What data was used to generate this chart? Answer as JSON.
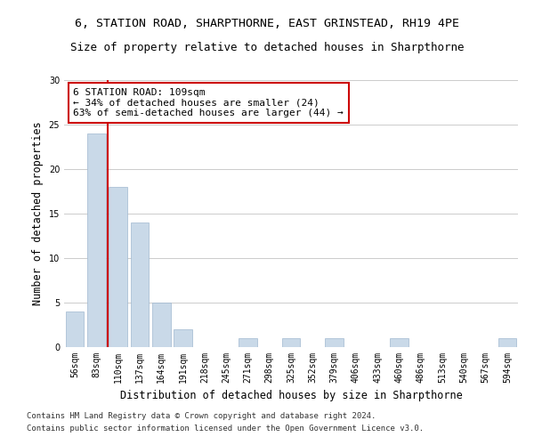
{
  "title_line1": "6, STATION ROAD, SHARPTHORNE, EAST GRINSTEAD, RH19 4PE",
  "title_line2": "Size of property relative to detached houses in Sharpthorne",
  "xlabel": "Distribution of detached houses by size in Sharpthorne",
  "ylabel": "Number of detached properties",
  "footnote1": "Contains HM Land Registry data © Crown copyright and database right 2024.",
  "footnote2": "Contains public sector information licensed under the Open Government Licence v3.0.",
  "categories": [
    "56sqm",
    "83sqm",
    "110sqm",
    "137sqm",
    "164sqm",
    "191sqm",
    "218sqm",
    "245sqm",
    "271sqm",
    "298sqm",
    "325sqm",
    "352sqm",
    "379sqm",
    "406sqm",
    "433sqm",
    "460sqm",
    "486sqm",
    "513sqm",
    "540sqm",
    "567sqm",
    "594sqm"
  ],
  "values": [
    4,
    24,
    18,
    14,
    5,
    2,
    0,
    0,
    1,
    0,
    1,
    0,
    1,
    0,
    0,
    1,
    0,
    0,
    0,
    0,
    1
  ],
  "bar_color": "#c9d9e8",
  "bar_edge_color": "#a0b8d0",
  "highlight_line_color": "#cc0000",
  "annotation_box_text": "6 STATION ROAD: 109sqm\n← 34% of detached houses are smaller (24)\n63% of semi-detached houses are larger (44) →",
  "annotation_box_color": "#cc0000",
  "ylim": [
    0,
    30
  ],
  "yticks": [
    0,
    5,
    10,
    15,
    20,
    25,
    30
  ],
  "background_color": "#ffffff",
  "grid_color": "#cccccc",
  "title_fontsize": 9.5,
  "subtitle_fontsize": 9,
  "axis_label_fontsize": 8.5,
  "tick_fontsize": 7,
  "annotation_fontsize": 8,
  "footnote_fontsize": 6.5
}
